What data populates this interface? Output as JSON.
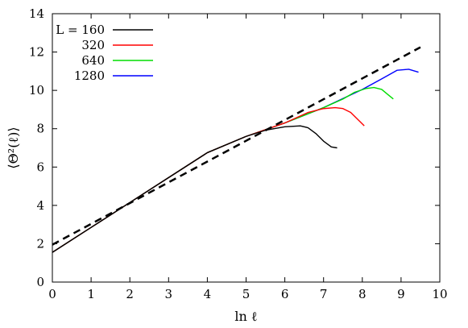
{
  "chart_data": {
    "type": "line",
    "title": "",
    "xlabel": "ln ℓ",
    "ylabel": "⟨Θ²(ℓ)⟩",
    "xlim": [
      0,
      10
    ],
    "ylim": [
      0,
      14
    ],
    "xticks": [
      0,
      1,
      2,
      3,
      4,
      5,
      6,
      7,
      8,
      9,
      10
    ],
    "yticks": [
      0,
      2,
      4,
      6,
      8,
      10,
      12,
      14
    ],
    "grid": false,
    "legend_position": "top-left",
    "legend_title": "L =",
    "series": [
      {
        "name": "160",
        "color": "#000000",
        "points": [
          [
            0,
            1.55
          ],
          [
            1,
            2.85
          ],
          [
            2,
            4.15
          ],
          [
            3,
            5.45
          ],
          [
            4,
            6.75
          ],
          [
            5,
            7.6
          ],
          [
            5.5,
            7.92
          ],
          [
            6.0,
            8.1
          ],
          [
            6.4,
            8.15
          ],
          [
            6.6,
            8.05
          ],
          [
            6.8,
            7.75
          ],
          [
            7.0,
            7.35
          ],
          [
            7.2,
            7.05
          ],
          [
            7.35,
            7.0
          ]
        ]
      },
      {
        "name": "320",
        "color": "#ff0000",
        "points": [
          [
            0,
            1.55
          ],
          [
            1,
            2.85
          ],
          [
            2,
            4.15
          ],
          [
            3,
            5.45
          ],
          [
            4,
            6.75
          ],
          [
            5,
            7.6
          ],
          [
            6,
            8.3
          ],
          [
            6.6,
            8.85
          ],
          [
            7.0,
            9.05
          ],
          [
            7.3,
            9.1
          ],
          [
            7.5,
            9.05
          ],
          [
            7.7,
            8.85
          ],
          [
            7.9,
            8.45
          ],
          [
            8.05,
            8.15
          ]
        ]
      },
      {
        "name": "640",
        "color": "#00dd00",
        "points": [
          [
            0,
            1.55
          ],
          [
            1,
            2.85
          ],
          [
            2,
            4.15
          ],
          [
            3,
            5.45
          ],
          [
            4,
            6.75
          ],
          [
            5,
            7.6
          ],
          [
            6,
            8.3
          ],
          [
            7,
            9.1
          ],
          [
            7.5,
            9.55
          ],
          [
            7.8,
            9.9
          ],
          [
            8.1,
            10.1
          ],
          [
            8.3,
            10.15
          ],
          [
            8.5,
            10.05
          ],
          [
            8.65,
            9.8
          ],
          [
            8.8,
            9.55
          ]
        ]
      },
      {
        "name": "1280",
        "color": "#0000ff",
        "points": [
          [
            0,
            1.55
          ],
          [
            1,
            2.85
          ],
          [
            2,
            4.15
          ],
          [
            3,
            5.45
          ],
          [
            4,
            6.75
          ],
          [
            5,
            7.6
          ],
          [
            6,
            8.3
          ],
          [
            7,
            9.1
          ],
          [
            8,
            10.05
          ],
          [
            8.5,
            10.6
          ],
          [
            8.9,
            11.05
          ],
          [
            9.2,
            11.1
          ],
          [
            9.45,
            10.95
          ]
        ]
      },
      {
        "name": "",
        "color": "#000000",
        "dashed": true,
        "points": [
          [
            0,
            1.95
          ],
          [
            9.5,
            12.25
          ]
        ]
      }
    ]
  }
}
